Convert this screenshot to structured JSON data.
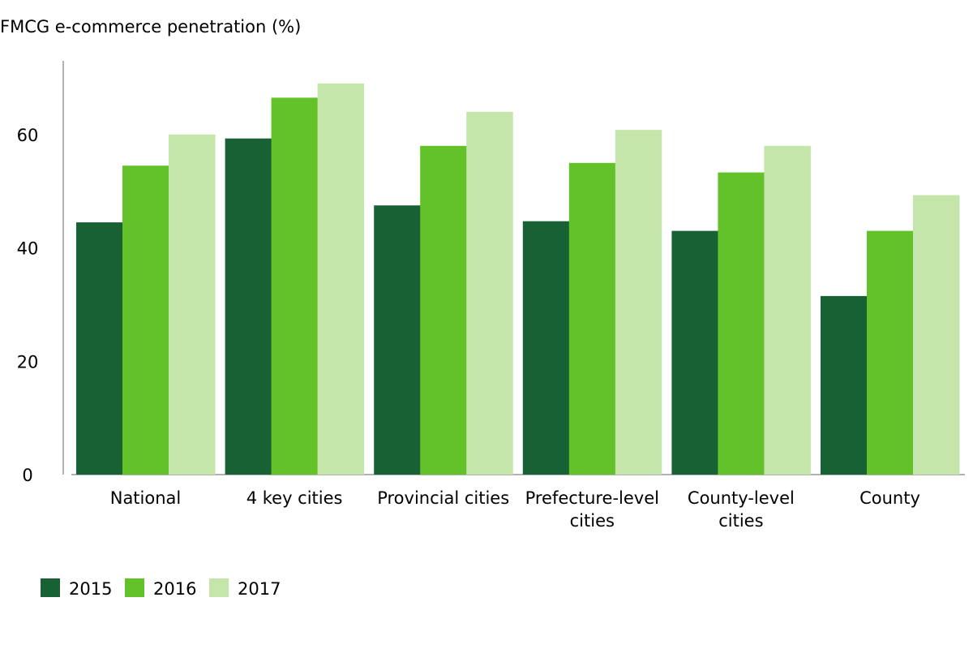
{
  "chart_data": {
    "type": "bar",
    "title": "FMCG e-commerce penetration (%)",
    "categories": [
      [
        "National"
      ],
      [
        "4 key cities"
      ],
      [
        "Provincial cities"
      ],
      [
        "Prefecture-level",
        "cities"
      ],
      [
        "County-level",
        "cities"
      ],
      [
        "County"
      ]
    ],
    "series": [
      {
        "name": "2015",
        "color": "#186134",
        "values": [
          44.5,
          59.3,
          47.5,
          44.7,
          43.0,
          31.5
        ]
      },
      {
        "name": "2016",
        "color": "#63c129",
        "values": [
          54.5,
          66.5,
          58.0,
          55.0,
          53.3,
          43.0
        ]
      },
      {
        "name": "2017",
        "color": "#c4e6aa",
        "values": [
          60.0,
          69.0,
          64.0,
          60.8,
          58.0,
          49.3
        ]
      }
    ],
    "y_ticks": [
      "0",
      "20",
      "40",
      "60"
    ],
    "ylim": [
      0,
      73
    ],
    "grid": false,
    "legend_position": "bottom-left"
  }
}
